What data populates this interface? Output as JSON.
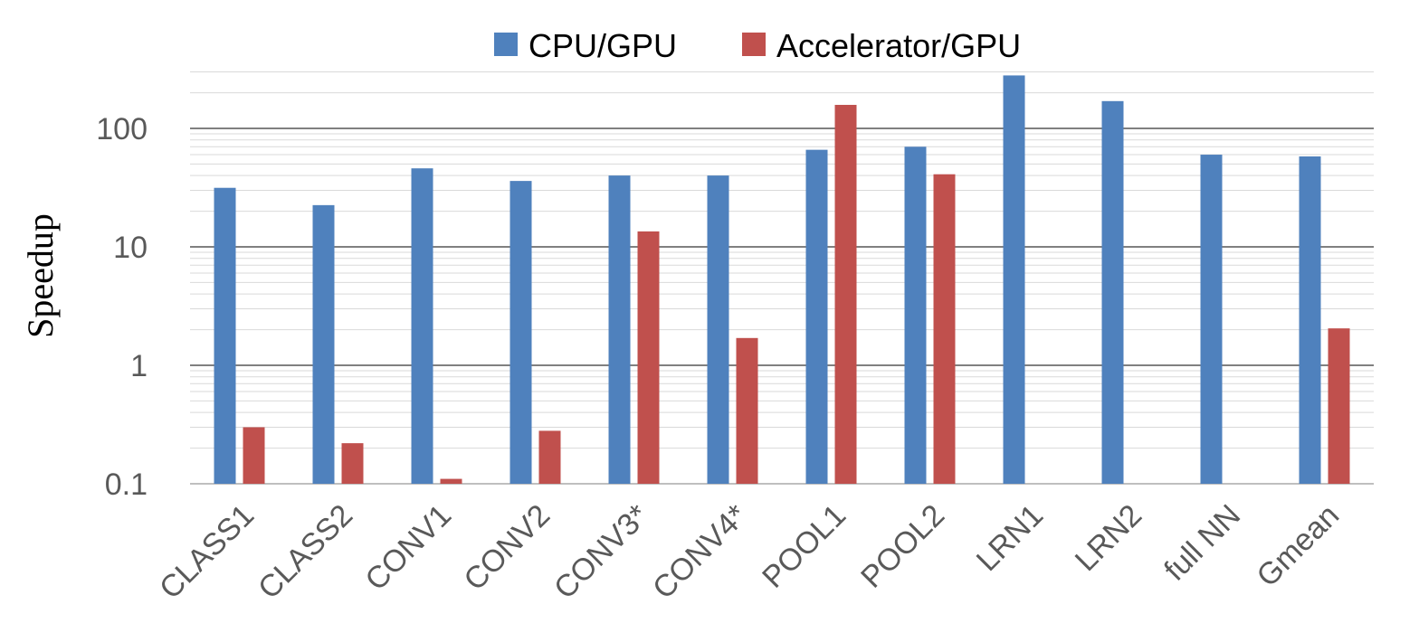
{
  "chart_data": {
    "type": "bar",
    "scale": "log",
    "ylabel": "Speedup",
    "xlabel": "",
    "ylim": [
      0.1,
      300
    ],
    "yticks": [
      {
        "value": 0.1,
        "label": "0.1"
      },
      {
        "value": 1,
        "label": "1"
      },
      {
        "value": 10,
        "label": "10"
      },
      {
        "value": 100,
        "label": "100"
      }
    ],
    "grid": true,
    "legend_position": "top-center",
    "categories": [
      "CLASS1",
      "CLASS2",
      "CONV1",
      "CONV2",
      "CONV3*",
      "CONV4*",
      "POOL1",
      "POOL2",
      "LRN1",
      "LRN2",
      "full NN",
      "Gmean"
    ],
    "series": [
      {
        "name": "CPU/GPU",
        "color": "#4f81bd",
        "values": [
          31.5,
          22.5,
          46,
          36,
          40,
          40,
          66,
          70,
          280,
          170,
          60,
          58
        ]
      },
      {
        "name": "Accelerator/GPU",
        "color": "#c0504d",
        "values": [
          0.3,
          0.22,
          0.11,
          0.28,
          13.5,
          1.7,
          158,
          41,
          null,
          null,
          null,
          2.05
        ]
      }
    ]
  }
}
